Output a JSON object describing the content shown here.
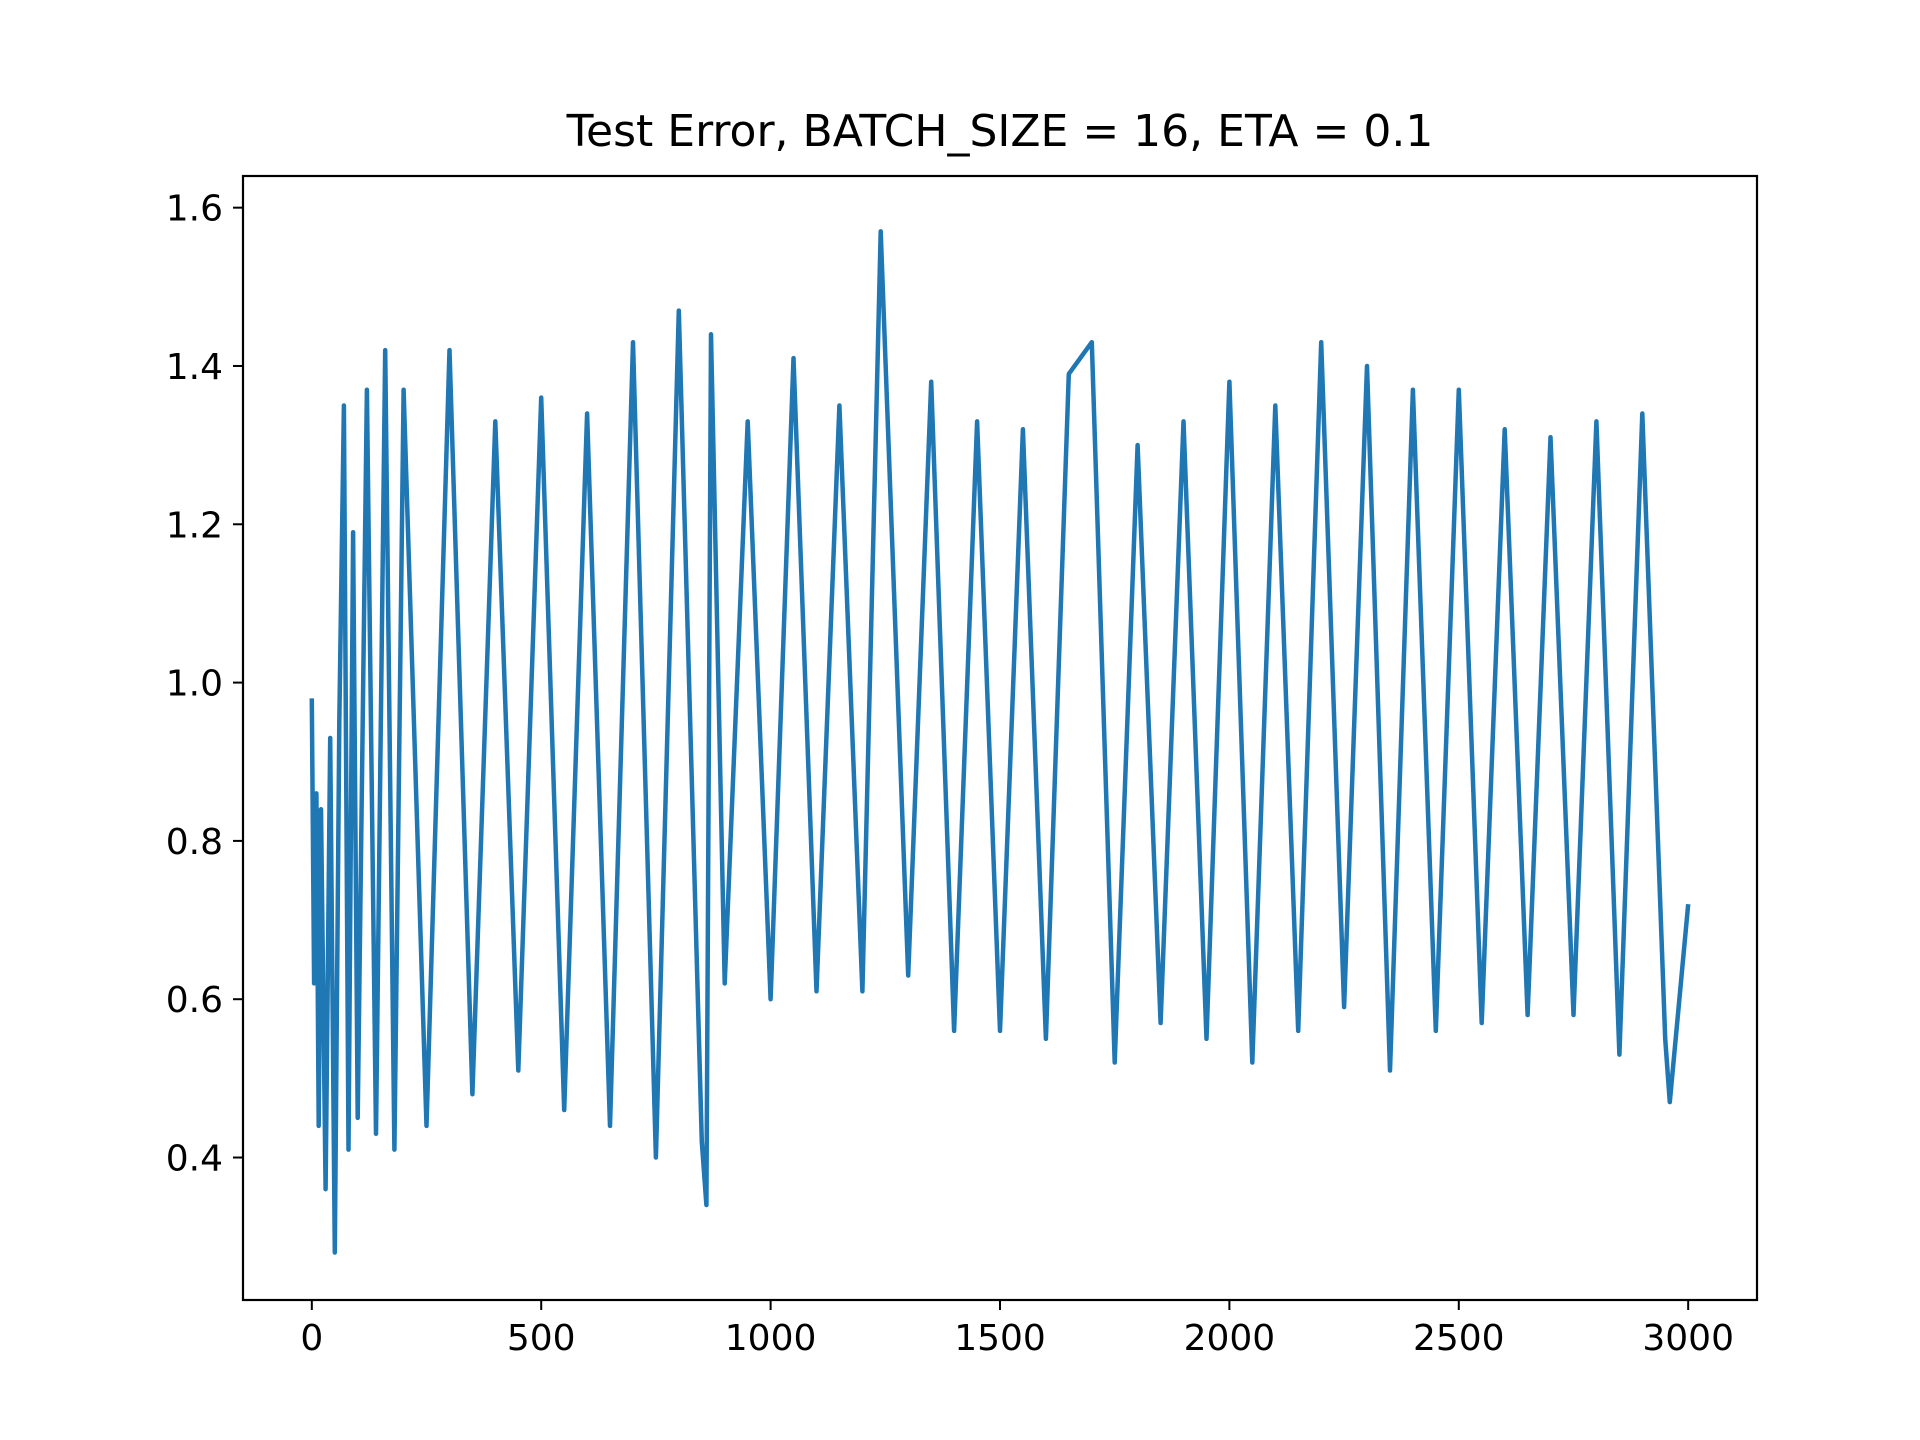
{
  "chart_data": {
    "type": "line",
    "title": "Test Error, BATCH_SIZE = 16, ETA = 0.1",
    "xlabel": "",
    "ylabel": "",
    "xlim": [
      -150,
      3150
    ],
    "ylim": [
      0.22,
      1.64
    ],
    "x_ticks": [
      0,
      500,
      1000,
      1500,
      2000,
      2500,
      3000
    ],
    "x_tick_labels": [
      "0",
      "500",
      "1000",
      "1500",
      "2000",
      "2500",
      "3000"
    ],
    "y_ticks": [
      0.4,
      0.6,
      0.8,
      1.0,
      1.2,
      1.4,
      1.6
    ],
    "y_tick_labels": [
      "0.4",
      "0.6",
      "0.8",
      "1.0",
      "1.2",
      "1.4",
      "1.6"
    ],
    "grid": false,
    "legend": "none",
    "series": [
      {
        "color": "#1f77b4",
        "x": [
          0,
          5,
          10,
          15,
          20,
          30,
          40,
          50,
          60,
          70,
          80,
          90,
          100,
          120,
          140,
          160,
          180,
          200,
          250,
          300,
          350,
          400,
          450,
          500,
          550,
          600,
          650,
          700,
          750,
          800,
          850,
          860,
          870,
          900,
          950,
          1000,
          1050,
          1100,
          1150,
          1200,
          1240,
          1300,
          1350,
          1400,
          1450,
          1500,
          1550,
          1600,
          1650,
          1700,
          1750,
          1800,
          1850,
          1900,
          1950,
          2000,
          2050,
          2100,
          2150,
          2200,
          2250,
          2300,
          2350,
          2400,
          2450,
          2500,
          2550,
          2600,
          2650,
          2700,
          2750,
          2800,
          2850,
          2900,
          2950,
          2960,
          3000
        ],
        "y": [
          0.98,
          0.62,
          0.86,
          0.44,
          0.84,
          0.36,
          0.93,
          0.28,
          0.95,
          1.35,
          0.41,
          1.19,
          0.45,
          1.37,
          0.43,
          1.42,
          0.41,
          1.37,
          0.44,
          1.42,
          0.48,
          1.33,
          0.51,
          1.36,
          0.46,
          1.34,
          0.44,
          1.43,
          0.4,
          1.47,
          0.42,
          0.34,
          1.44,
          0.62,
          1.33,
          0.6,
          1.41,
          0.61,
          1.35,
          0.61,
          1.57,
          0.63,
          1.38,
          0.56,
          1.33,
          0.56,
          1.32,
          0.55,
          1.39,
          1.43,
          0.52,
          1.3,
          0.57,
          1.33,
          0.55,
          1.38,
          0.52,
          1.35,
          0.56,
          1.43,
          0.59,
          1.4,
          0.51,
          1.37,
          0.56,
          1.37,
          0.57,
          1.32,
          0.58,
          1.31,
          0.58,
          1.33,
          0.53,
          1.34,
          0.55,
          0.47,
          0.72
        ]
      }
    ]
  }
}
